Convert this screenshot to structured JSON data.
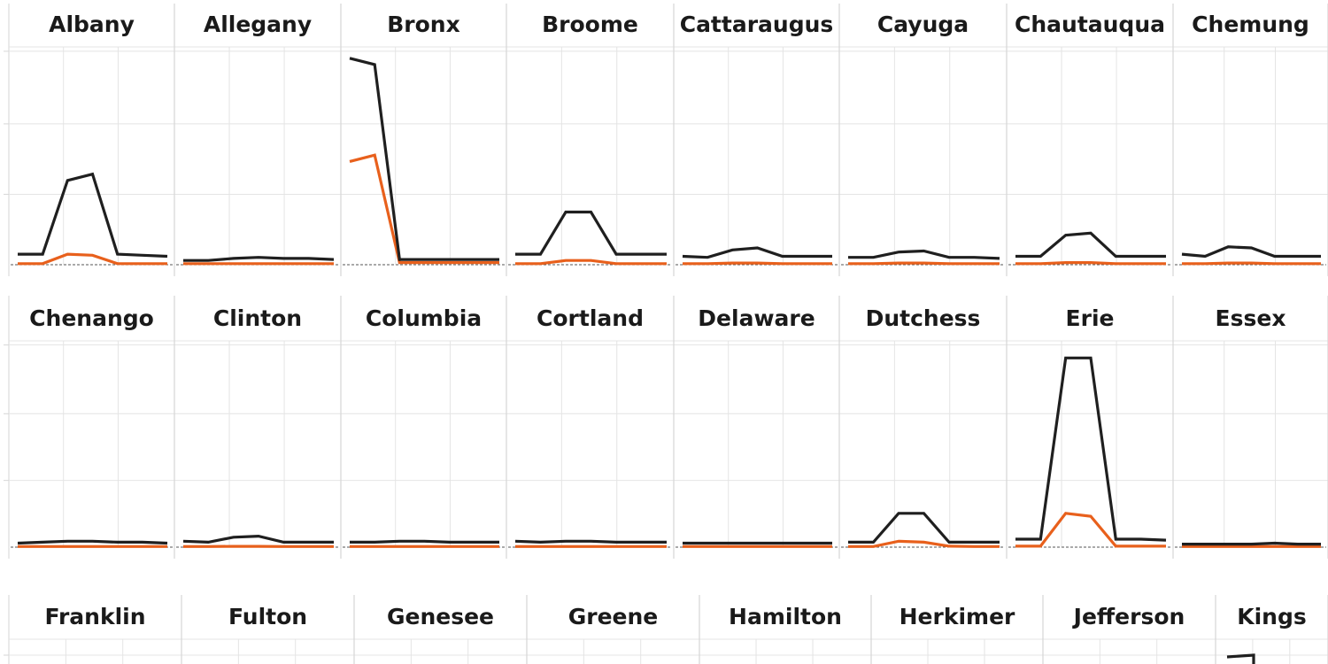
{
  "colors": {
    "series_total": "#1f1f1f",
    "series_secondary": "#e8601c",
    "grid": "#e4e4e4",
    "divider": "#d6d6d6",
    "baseline": "#555555"
  },
  "chart_data": {
    "type": "line",
    "layout": "small-multiples",
    "x": [
      1,
      2,
      3,
      4,
      5,
      6,
      7
    ],
    "ylim": [
      0,
      100
    ],
    "grid": true,
    "rows": [
      {
        "panels": [
          {
            "title": "Albany",
            "series": [
              {
                "values": [
                  5,
                  5,
                  40,
                  43,
                  5,
                  4.5,
                  4
                ]
              },
              {
                "values": [
                  0.5,
                  0.5,
                  5,
                  4.5,
                  0.5,
                  0.5,
                  0.5
                ]
              }
            ]
          },
          {
            "title": "Allegany",
            "series": [
              {
                "values": [
                  2,
                  2,
                  3,
                  3.5,
                  3,
                  3,
                  2.5
                ]
              },
              {
                "values": [
                  0.5,
                  0.5,
                  0.5,
                  0.5,
                  0.5,
                  0.5,
                  0.5
                ]
              }
            ]
          },
          {
            "title": "Bronx",
            "series": [
              {
                "values": [
                  98,
                  95,
                  2.5,
                  2.5,
                  2.5,
                  2.5,
                  2.5
                ]
              },
              {
                "values": [
                  49,
                  52,
                  1,
                  1,
                  1,
                  1,
                  1
                ]
              }
            ]
          },
          {
            "title": "Broome",
            "series": [
              {
                "values": [
                  5,
                  5,
                  25,
                  25,
                  5,
                  5,
                  5
                ]
              },
              {
                "values": [
                  0.5,
                  0.5,
                  2,
                  2,
                  0.5,
                  0.5,
                  0.5
                ]
              }
            ]
          },
          {
            "title": "Cattaraugus",
            "series": [
              {
                "values": [
                  4,
                  3.5,
                  7,
                  8,
                  4,
                  4,
                  4
                ]
              },
              {
                "values": [
                  0.5,
                  0.5,
                  0.8,
                  0.8,
                  0.5,
                  0.5,
                  0.5
                ]
              }
            ]
          },
          {
            "title": "Cayuga",
            "series": [
              {
                "values": [
                  3.5,
                  3.5,
                  6,
                  6.5,
                  3.5,
                  3.5,
                  3
                ]
              },
              {
                "values": [
                  0.5,
                  0.5,
                  0.8,
                  0.8,
                  0.5,
                  0.5,
                  0.5
                ]
              }
            ]
          },
          {
            "title": "Chautauqua",
            "series": [
              {
                "values": [
                  4,
                  4,
                  14,
                  15,
                  4,
                  4,
                  4
                ]
              },
              {
                "values": [
                  0.5,
                  0.5,
                  1,
                  1,
                  0.5,
                  0.5,
                  0.5
                ]
              }
            ]
          },
          {
            "title": "Chemung",
            "series": [
              {
                "values": [
                  5,
                  4,
                  8.5,
                  8,
                  4,
                  4,
                  4
                ]
              },
              {
                "values": [
                  0.5,
                  0.5,
                  0.8,
                  0.8,
                  0.5,
                  0.5,
                  0.5
                ]
              }
            ]
          }
        ]
      },
      {
        "panels": [
          {
            "title": "Chenango",
            "series": [
              {
                "values": [
                  2,
                  2.5,
                  3,
                  3,
                  2.5,
                  2.5,
                  2
                ]
              },
              {
                "values": [
                  0.3,
                  0.3,
                  0.3,
                  0.3,
                  0.3,
                  0.3,
                  0.3
                ]
              }
            ]
          },
          {
            "title": "Clinton",
            "series": [
              {
                "values": [
                  3,
                  2.5,
                  5,
                  5.5,
                  2.5,
                  2.5,
                  2.5
                ]
              },
              {
                "values": [
                  0.3,
                  0.3,
                  0.4,
                  0.4,
                  0.3,
                  0.3,
                  0.3
                ]
              }
            ]
          },
          {
            "title": "Columbia",
            "series": [
              {
                "values": [
                  2.5,
                  2.5,
                  3,
                  3,
                  2.5,
                  2.5,
                  2.5
                ]
              },
              {
                "values": [
                  0.3,
                  0.3,
                  0.3,
                  0.3,
                  0.3,
                  0.3,
                  0.3
                ]
              }
            ]
          },
          {
            "title": "Cortland",
            "series": [
              {
                "values": [
                  3,
                  2.5,
                  3,
                  3,
                  2.5,
                  2.5,
                  2.5
                ]
              },
              {
                "values": [
                  0.3,
                  0.3,
                  0.3,
                  0.3,
                  0.3,
                  0.3,
                  0.3
                ]
              }
            ]
          },
          {
            "title": "Delaware",
            "series": [
              {
                "values": [
                  2,
                  2,
                  2,
                  2,
                  2,
                  2,
                  2
                ]
              },
              {
                "values": [
                  0.3,
                  0.3,
                  0.3,
                  0.3,
                  0.3,
                  0.3,
                  0.3
                ]
              }
            ]
          },
          {
            "title": "Dutchess",
            "series": [
              {
                "values": [
                  2.5,
                  2.5,
                  17,
                  17,
                  2.5,
                  2.5,
                  2.5
                ]
              },
              {
                "values": [
                  0.3,
                  0.3,
                  3,
                  2.5,
                  0.5,
                  0.3,
                  0.3
                ]
              }
            ]
          },
          {
            "title": "Erie",
            "series": [
              {
                "values": [
                  4,
                  4,
                  95,
                  95,
                  4,
                  4,
                  3.5
                ]
              },
              {
                "values": [
                  0.5,
                  0.5,
                  17,
                  15.5,
                  0.5,
                  0.5,
                  0.5
                ]
              }
            ]
          },
          {
            "title": "Essex",
            "series": [
              {
                "values": [
                  1.5,
                  1.5,
                  1.5,
                  1.5,
                  2,
                  1.5,
                  1.5
                ]
              },
              {
                "values": [
                  0.3,
                  0.3,
                  0.3,
                  0.3,
                  0.3,
                  0.3,
                  0.3
                ]
              }
            ]
          }
        ]
      },
      {
        "panels": [
          {
            "title": "Franklin",
            "series": [
              {
                "values": []
              },
              {
                "values": []
              }
            ]
          },
          {
            "title": "Fulton",
            "series": [
              {
                "values": []
              },
              {
                "values": []
              }
            ]
          },
          {
            "title": "Genesee",
            "series": [
              {
                "values": []
              },
              {
                "values": []
              }
            ]
          },
          {
            "title": "Greene",
            "series": [
              {
                "values": []
              },
              {
                "values": []
              }
            ]
          },
          {
            "title": "Hamilton",
            "series": [
              {
                "values": []
              },
              {
                "values": []
              }
            ]
          },
          {
            "title": "Herkimer",
            "series": [
              {
                "values": []
              },
              {
                "values": []
              }
            ]
          },
          {
            "title": "Jefferson",
            "series": [
              {
                "values": []
              },
              {
                "values": []
              }
            ]
          },
          {
            "title": "Kings",
            "series": [
              {
                "values": []
              },
              {
                "values": []
              }
            ]
          }
        ]
      }
    ]
  }
}
